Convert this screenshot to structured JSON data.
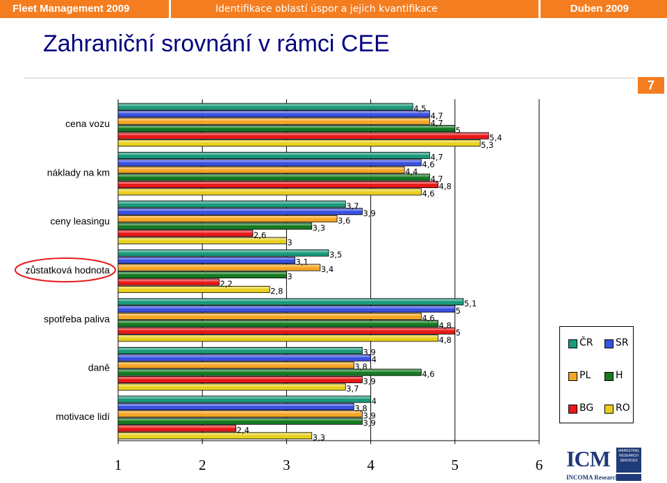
{
  "header": {
    "left": "Fleet Management 2009",
    "center": "Identifikace oblastí úspor a jejich kvantifikace",
    "right": "Duben 2009"
  },
  "title": "Zahraniční srovnání v rámci CEE",
  "page_number": "7",
  "colors": {
    "orange": "#f47d20",
    "title": "#000080",
    "series": {
      "ČR": "#1a9a7a",
      "SR": "#3a50e0",
      "PL": "#f5a623",
      "H": "#157a22",
      "BG": "#e81818",
      "RO": "#e8d020"
    }
  },
  "chart_data": {
    "type": "bar",
    "orientation": "horizontal",
    "categories": [
      "cena vozu",
      "náklady na km",
      "ceny leasingu",
      "zůstatková hodnota",
      "spotřeba paliva",
      "daně",
      "motivace lidí"
    ],
    "series": [
      {
        "name": "ČR",
        "values": [
          4.5,
          4.7,
          3.7,
          3.5,
          5.1,
          3.9,
          4.0
        ]
      },
      {
        "name": "SR",
        "values": [
          4.7,
          4.6,
          3.9,
          3.1,
          5.0,
          4.0,
          3.8
        ]
      },
      {
        "name": "PL",
        "values": [
          4.7,
          4.4,
          3.6,
          3.4,
          4.6,
          3.8,
          3.9
        ]
      },
      {
        "name": "H",
        "values": [
          5.0,
          4.7,
          3.3,
          3.0,
          4.8,
          4.6,
          3.9
        ]
      },
      {
        "name": "BG",
        "values": [
          5.4,
          4.8,
          2.6,
          2.2,
          5.0,
          3.9,
          2.4
        ]
      },
      {
        "name": "RO",
        "values": [
          5.3,
          4.6,
          3.0,
          2.8,
          4.8,
          3.7,
          3.3
        ]
      }
    ],
    "data_labels": [
      [
        "4,5",
        "4,7",
        "4,7",
        "5",
        "5,4",
        "5,3"
      ],
      [
        "4,7",
        "4,6",
        "4,4",
        "4,7",
        "4,8",
        "4,6"
      ],
      [
        "3,7",
        "3,9",
        "3,6",
        "3,3",
        "2,6",
        "3"
      ],
      [
        "3,5",
        "3,1",
        "3,4",
        "3",
        "2,2",
        "2,8"
      ],
      [
        "5,1",
        "5",
        "4,6",
        "4,8",
        "5",
        "4,8"
      ],
      [
        "3,9",
        "4",
        "3,8",
        "4,6",
        "3,9",
        "3,7"
      ],
      [
        "4",
        "3,8",
        "3,9",
        "3,9",
        "2,4",
        "3,3"
      ]
    ],
    "xlim": [
      1,
      6
    ],
    "x_ticks": [
      "1",
      "2",
      "3",
      "4",
      "5",
      "6"
    ],
    "grid": true,
    "legend": "right",
    "legend_entries": [
      "ČR",
      "SR",
      "PL",
      "H",
      "BG",
      "RO"
    ],
    "highlighted_category": "zůstatková hodnota"
  },
  "logo": {
    "main": "ICM",
    "sub": "INCOMA Research",
    "box": "MARKETING RESEARCH SERVICES"
  }
}
